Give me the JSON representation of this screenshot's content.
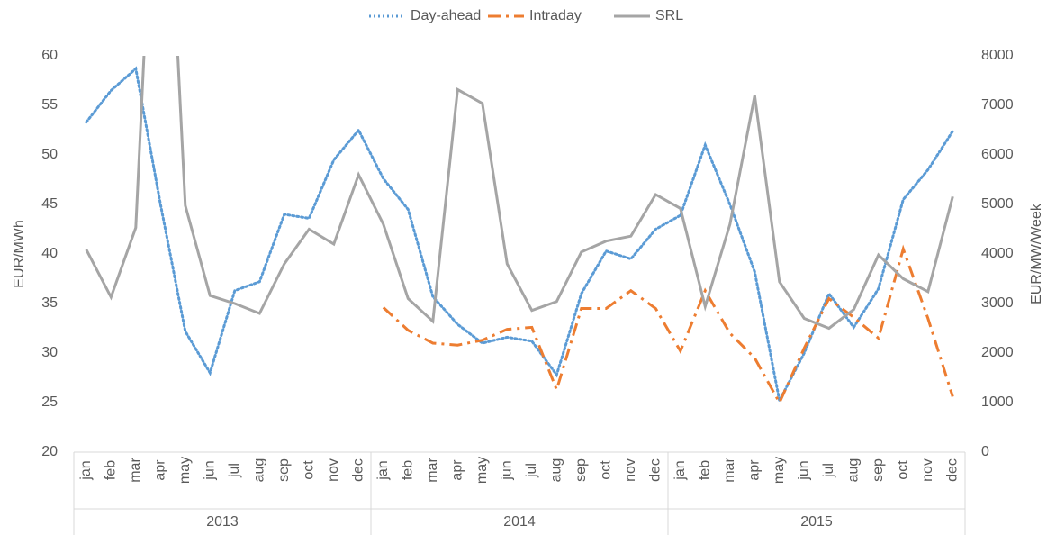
{
  "chart_data": {
    "type": "line",
    "categories": [
      "jan",
      "feb",
      "mar",
      "apr",
      "may",
      "jun",
      "jul",
      "aug",
      "sep",
      "oct",
      "nov",
      "dec",
      "jan",
      "feb",
      "mar",
      "apr",
      "may",
      "jun",
      "jul",
      "aug",
      "sep",
      "oct",
      "nov",
      "dec",
      "jan",
      "feb",
      "mar",
      "apr",
      "may",
      "jun",
      "jul",
      "aug",
      "sep",
      "oct",
      "nov",
      "dec"
    ],
    "category_groups": [
      "2013",
      "2014",
      "2015"
    ],
    "y_label": "EUR/MWh",
    "y2_label": "EUR/MW/Week",
    "ylim": [
      20,
      60
    ],
    "yticks": [
      20,
      25,
      30,
      35,
      40,
      45,
      50,
      55,
      60
    ],
    "y2lim": [
      0,
      8000
    ],
    "y2ticks": [
      0,
      1000,
      2000,
      3000,
      4000,
      5000,
      6000,
      7000,
      8000
    ],
    "grid": false,
    "legend": "top",
    "series": [
      {
        "name": "Day-ahead",
        "color": "#5b9bd5",
        "style": "dotted",
        "axis": "y",
        "values": [
          53.3,
          56.5,
          58.7,
          45,
          32.2,
          28,
          36.3,
          37.2,
          44,
          43.6,
          49.5,
          52.5,
          47.6,
          44.5,
          35.7,
          32.9,
          31,
          31.6,
          31.2,
          27.8,
          36,
          40.3,
          39.5,
          42.5,
          43.9,
          51,
          45,
          38.2,
          25.2,
          30,
          36,
          32.6,
          36.5,
          45.5,
          48.5,
          52.4
        ]
      },
      {
        "name": "Intraday",
        "color": "#ed7d31",
        "style": "dashdot",
        "axis": "y",
        "values": [
          null,
          null,
          null,
          null,
          null,
          null,
          null,
          null,
          null,
          null,
          null,
          null,
          34.6,
          32.3,
          31,
          30.8,
          31.3,
          32.4,
          32.6,
          26.3,
          34.5,
          34.5,
          36.3,
          34.5,
          30.2,
          36.3,
          32,
          29.5,
          25,
          30.5,
          35.5,
          33.6,
          31.5,
          40.5,
          33.5,
          25.6
        ]
      },
      {
        "name": "SRL",
        "color": "#a5a5a5",
        "style": "solid",
        "axis": "y2",
        "values": [
          4090,
          3130,
          4530,
          15000,
          4980,
          3160,
          3000,
          2800,
          3800,
          4500,
          4200,
          5600,
          4600,
          3100,
          2640,
          7320,
          7040,
          3800,
          2860,
          3040,
          4040,
          4260,
          4360,
          5200,
          4920,
          2940,
          4600,
          7200,
          3440,
          2700,
          2500,
          2880,
          3980,
          3500,
          3240,
          5160
        ]
      }
    ]
  }
}
